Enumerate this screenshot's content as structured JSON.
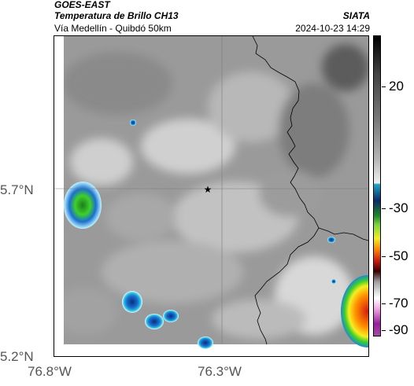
{
  "header": {
    "satellite": "GOES-EAST",
    "product": "Temperatura de Brillo CH13",
    "source": "SIATA",
    "area": "Vía Medellín - Quibdó 50km",
    "datetime": "2024-10-23 14:29"
  },
  "axes": {
    "lat_labels": [
      "5.7°N",
      "5.2°N"
    ],
    "lon_labels": [
      "76.8°W",
      "76.3°W"
    ]
  },
  "colorbar": {
    "labels": [
      "20",
      "-30",
      "-50",
      "-70",
      "-90"
    ]
  },
  "map": {
    "marker": "star-marker",
    "colors": {
      "cold_cloud_blue": "#1a6fd0",
      "cold_cloud_green": "#3fcf2a",
      "warm_ground_gray": "#6e6e6e",
      "border_line": "#000000"
    }
  }
}
